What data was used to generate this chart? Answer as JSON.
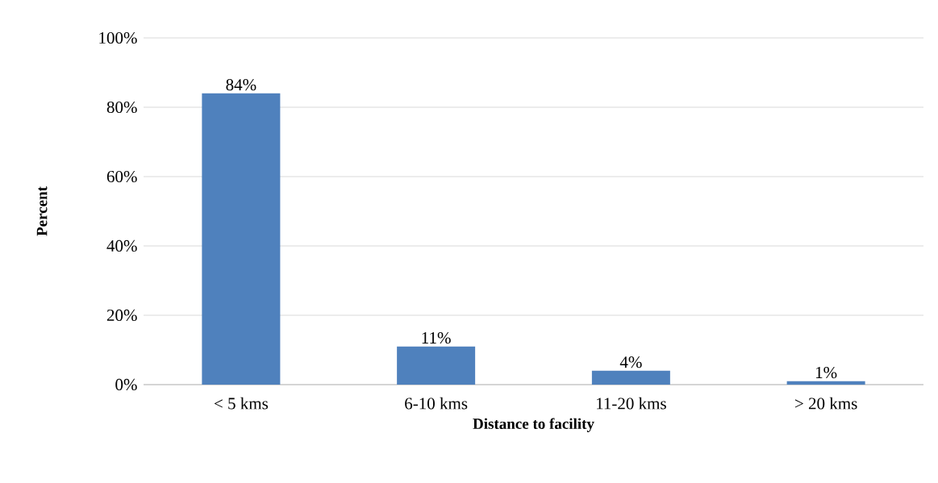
{
  "chart_data": {
    "type": "bar",
    "xlabel": "Distance to facility",
    "ylabel": "Percent",
    "categories": [
      "< 5 kms",
      "6-10 kms",
      "11-20 kms",
      "> 20 kms"
    ],
    "values": [
      84,
      11,
      4,
      1
    ],
    "value_labels": [
      "84%",
      "11%",
      "4%",
      "1%"
    ],
    "color": "#4f81bd",
    "ylim": [
      0,
      100
    ],
    "yticks": [
      {
        "value": 0,
        "label": "0%"
      },
      {
        "value": 20,
        "label": "20%"
      },
      {
        "value": 40,
        "label": "40%"
      },
      {
        "value": 60,
        "label": "60%"
      },
      {
        "value": 80,
        "label": "80%"
      },
      {
        "value": 100,
        "label": "100%"
      }
    ],
    "grid": "y"
  }
}
